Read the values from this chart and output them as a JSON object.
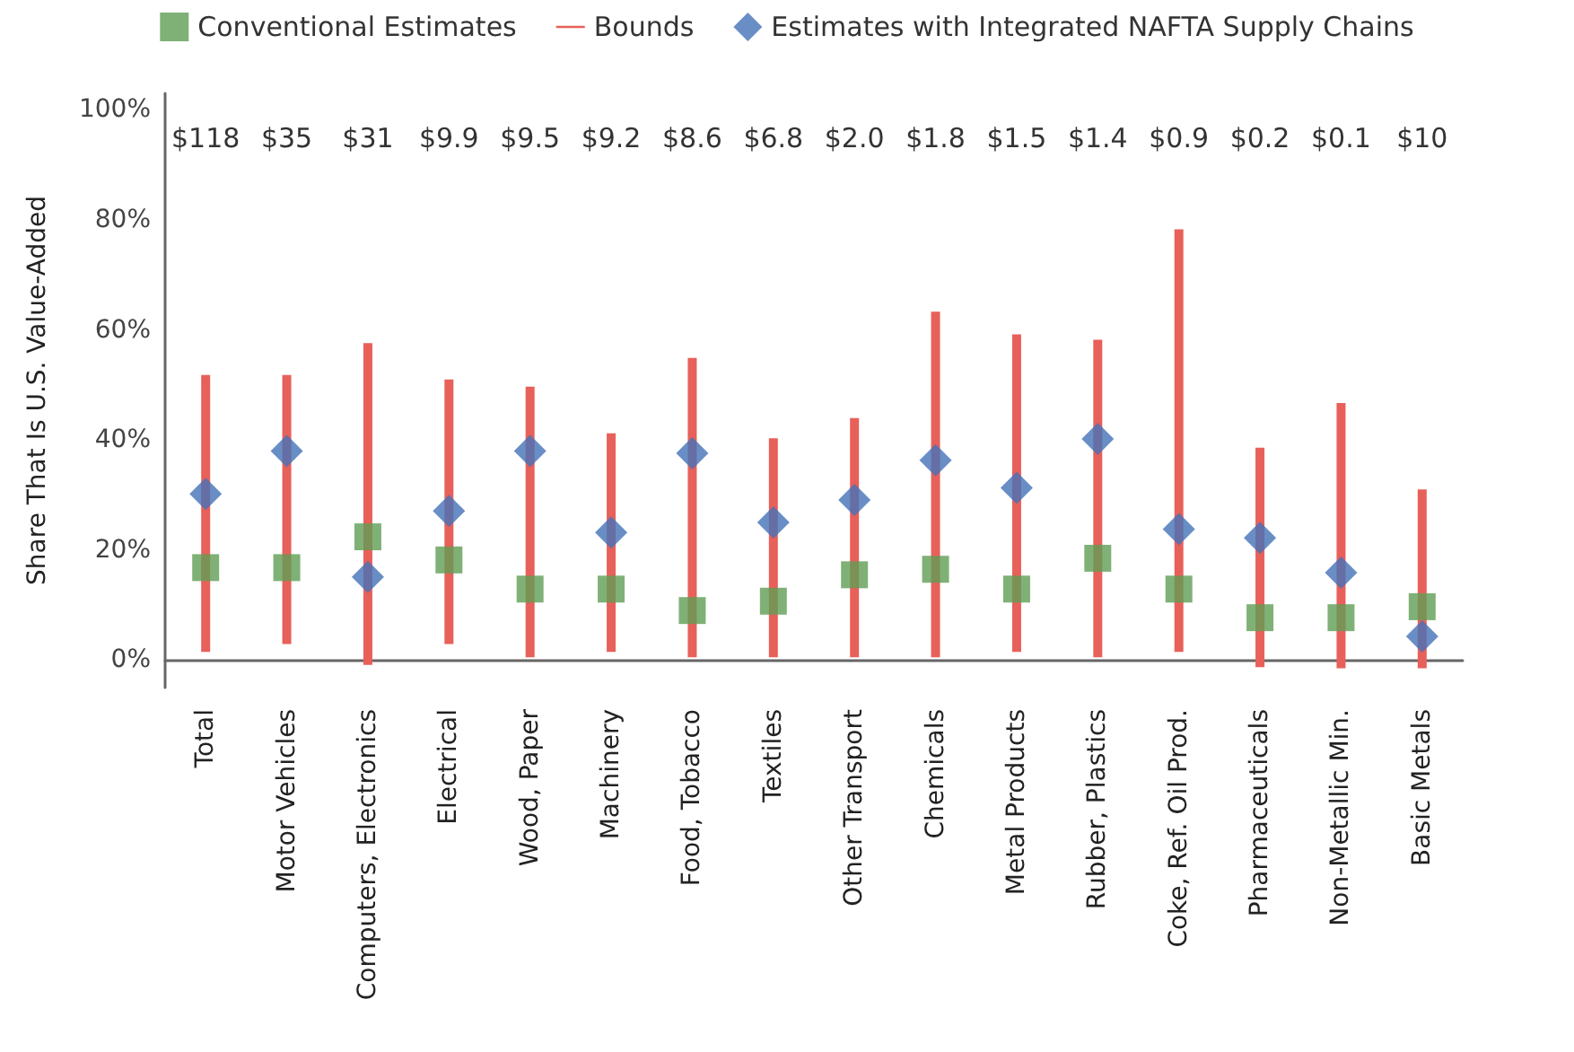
{
  "chart_data": {
    "type": "bar",
    "ylabel": "Share That Is U.S. Value-Added",
    "categories": [
      "Total",
      "Motor Vehicles",
      "Computers, Electronics",
      "Electrical",
      "Wood, Paper",
      "Machinery",
      "Food, Tobacco",
      "Textiles",
      "Other Transport",
      "Chemicals",
      "Metal Products",
      "Rubber, Plastics",
      "Coke, Ref. Oil Prod.",
      "Pharmaceuticals",
      "Non-Metallic Min.",
      "Basic Metals"
    ],
    "series": [
      {
        "name": "Conventional Estimates",
        "type": "scatter",
        "marker": "square",
        "color": "#5f9e55",
        "values": [
          16.8,
          16.8,
          22.4,
          18.2,
          12.9,
          12.9,
          9.0,
          10.7,
          15.5,
          16.5,
          12.9,
          18.5,
          12.9,
          7.7,
          7.7,
          9.7
        ]
      },
      {
        "name": "Bounds",
        "color": "#e8605a",
        "base": [
          1.5,
          2.9,
          -0.9,
          2.9,
          0.5,
          1.5,
          0.5,
          0.5,
          0.5,
          0.5,
          1.5,
          0.5,
          1.5,
          -1.3,
          -1.5,
          -1.5
        ],
        "values": [
          50.3,
          48.9,
          58.5,
          48.1,
          49.2,
          39.7,
          54.4,
          39.8,
          43.5,
          62.8,
          57.7,
          57.7,
          76.8,
          39.9,
          48.2,
          32.5
        ]
      },
      {
        "name": "Estimates with Integrated NAFTA Supply Chains",
        "type": "scatter",
        "marker": "diamond",
        "color": "#4472b8",
        "values": [
          30.2,
          38.0,
          15.1,
          27.1,
          38.0,
          23.2,
          37.6,
          25.0,
          29.1,
          36.3,
          31.3,
          40.2,
          23.8,
          22.2,
          15.9,
          4.3
        ]
      }
    ],
    "annotations": [
      "$118",
      "$35",
      "$31",
      "$9.9",
      "$9.5",
      "$9.2",
      "$8.6",
      "$6.8",
      "$2.0",
      "$1.8",
      "$1.5",
      "$1.4",
      "$0.9",
      "$0.2",
      "$0.1",
      "$10"
    ],
    "ylim": [
      -5,
      103
    ],
    "yticks": [
      {
        "value": 0,
        "label": "0%"
      },
      {
        "value": 20,
        "label": "20%"
      },
      {
        "value": 40,
        "label": "40%"
      },
      {
        "value": 60,
        "label": "60%"
      },
      {
        "value": 80,
        "label": "80%"
      },
      {
        "value": 100,
        "label": "100%"
      }
    ],
    "grid": false,
    "legend": "top"
  }
}
